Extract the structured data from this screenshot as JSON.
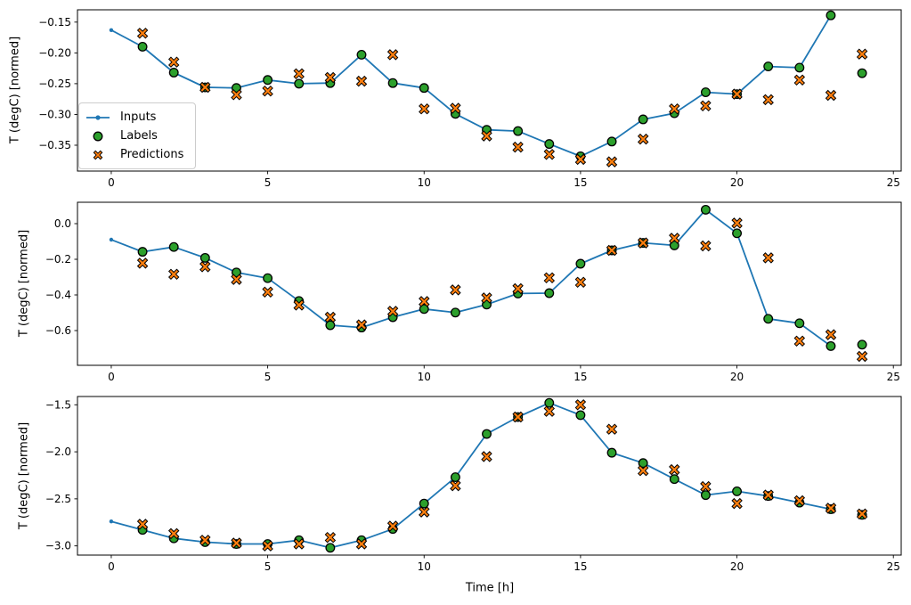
{
  "xlabel": "Time [h]",
  "colors": {
    "inputs": "#1f77b4",
    "labels": "#2ca02c",
    "predictions": "#ff7f0e",
    "marker_edge": "#000000",
    "axis": "#000000",
    "legend_border": "#cccccc"
  },
  "legend": {
    "position": "upper-left-of-first-subplot",
    "items": [
      {
        "label": "Inputs",
        "marker": "line-with-dot"
      },
      {
        "label": "Labels",
        "marker": "circle"
      },
      {
        "label": "Predictions",
        "marker": "thick-x"
      }
    ]
  },
  "chart_data": [
    {
      "type": "line",
      "title": "",
      "ylabel": "T (degC) [normed]",
      "grid": false,
      "xlim": [
        -1.08,
        25.25
      ],
      "ylim": [
        -0.392,
        -0.13
      ],
      "xticks": [
        0,
        5,
        10,
        15,
        20,
        25
      ],
      "xtick_labels": [
        "0",
        "5",
        "10",
        "15",
        "20",
        "25"
      ],
      "ytick_values": [
        -0.15,
        -0.2,
        -0.25,
        -0.3,
        -0.35
      ],
      "ytick_labels": [
        "−0.15",
        "−0.20",
        "−0.25",
        "−0.30",
        "−0.35"
      ],
      "series": [
        {
          "name": "Inputs",
          "style": "line-marker",
          "x": [
            0,
            1,
            2,
            3,
            4,
            5,
            6,
            7,
            8,
            9,
            10,
            11,
            12,
            13,
            14,
            15,
            16,
            17,
            18,
            19,
            20,
            21,
            22,
            23
          ],
          "y": [
            -0.163,
            -0.19,
            -0.232,
            -0.256,
            -0.257,
            -0.244,
            -0.25,
            -0.249,
            -0.203,
            -0.249,
            -0.257,
            -0.299,
            -0.325,
            -0.327,
            -0.348,
            -0.368,
            -0.344,
            -0.308,
            -0.298,
            -0.264,
            -0.267,
            -0.222,
            -0.224,
            -0.139
          ]
        },
        {
          "name": "Labels",
          "style": "scatter-circle",
          "x": [
            1,
            2,
            3,
            4,
            5,
            6,
            7,
            8,
            9,
            10,
            11,
            12,
            13,
            14,
            15,
            16,
            17,
            18,
            19,
            20,
            21,
            22,
            23,
            24
          ],
          "y": [
            -0.19,
            -0.232,
            -0.256,
            -0.257,
            -0.244,
            -0.25,
            -0.249,
            -0.203,
            -0.249,
            -0.257,
            -0.299,
            -0.325,
            -0.327,
            -0.348,
            -0.368,
            -0.344,
            -0.308,
            -0.298,
            -0.264,
            -0.267,
            -0.222,
            -0.224,
            -0.139,
            -0.233
          ]
        },
        {
          "name": "Predictions",
          "style": "scatter-x",
          "x": [
            1,
            2,
            3,
            4,
            5,
            6,
            7,
            8,
            9,
            10,
            11,
            12,
            13,
            14,
            15,
            16,
            17,
            18,
            19,
            20,
            21,
            22,
            23,
            24
          ],
          "y": [
            -0.168,
            -0.215,
            -0.256,
            -0.268,
            -0.262,
            -0.234,
            -0.24,
            -0.246,
            -0.203,
            -0.291,
            -0.29,
            -0.335,
            -0.353,
            -0.365,
            -0.373,
            -0.377,
            -0.34,
            -0.291,
            -0.286,
            -0.267,
            -0.276,
            -0.244,
            -0.269,
            -0.202
          ]
        }
      ]
    },
    {
      "type": "line",
      "title": "",
      "ylabel": "T (degC) [normed]",
      "grid": false,
      "xlim": [
        -1.08,
        25.25
      ],
      "ylim": [
        -0.795,
        0.12
      ],
      "xticks": [
        0,
        5,
        10,
        15,
        20,
        25
      ],
      "xtick_labels": [
        "0",
        "5",
        "10",
        "15",
        "20",
        "25"
      ],
      "ytick_values": [
        0.0,
        -0.2,
        -0.4,
        -0.6
      ],
      "ytick_labels": [
        "0.0",
        "−0.2",
        "−0.4",
        "−0.6"
      ],
      "series": [
        {
          "name": "Inputs",
          "style": "line-marker",
          "x": [
            0,
            1,
            2,
            3,
            4,
            5,
            6,
            7,
            8,
            9,
            10,
            11,
            12,
            13,
            14,
            15,
            16,
            17,
            18,
            19,
            20,
            21,
            22,
            23
          ],
          "y": [
            -0.09,
            -0.158,
            -0.131,
            -0.192,
            -0.274,
            -0.306,
            -0.434,
            -0.57,
            -0.583,
            -0.525,
            -0.479,
            -0.499,
            -0.454,
            -0.392,
            -0.39,
            -0.225,
            -0.15,
            -0.108,
            -0.122,
            0.078,
            -0.054,
            -0.534,
            -0.559,
            -0.687
          ]
        },
        {
          "name": "Labels",
          "style": "scatter-circle",
          "x": [
            1,
            2,
            3,
            4,
            5,
            6,
            7,
            8,
            9,
            10,
            11,
            12,
            13,
            14,
            15,
            16,
            17,
            18,
            19,
            20,
            21,
            22,
            23,
            24
          ],
          "y": [
            -0.158,
            -0.131,
            -0.192,
            -0.274,
            -0.306,
            -0.434,
            -0.57,
            -0.583,
            -0.525,
            -0.479,
            -0.499,
            -0.454,
            -0.392,
            -0.39,
            -0.225,
            -0.15,
            -0.108,
            -0.122,
            0.078,
            -0.054,
            -0.534,
            -0.559,
            -0.687,
            -0.679
          ]
        },
        {
          "name": "Predictions",
          "style": "scatter-x",
          "x": [
            1,
            2,
            3,
            4,
            5,
            6,
            7,
            8,
            9,
            10,
            11,
            12,
            13,
            14,
            15,
            16,
            17,
            18,
            19,
            20,
            21,
            22,
            23,
            24
          ],
          "y": [
            -0.222,
            -0.284,
            -0.242,
            -0.313,
            -0.384,
            -0.457,
            -0.525,
            -0.568,
            -0.492,
            -0.437,
            -0.372,
            -0.417,
            -0.365,
            -0.304,
            -0.329,
            -0.15,
            -0.108,
            -0.082,
            -0.125,
            0.003,
            -0.192,
            -0.659,
            -0.623,
            -0.745
          ]
        }
      ]
    },
    {
      "type": "line",
      "title": "",
      "ylabel": "T (degC) [normed]",
      "grid": false,
      "xlim": [
        -1.08,
        25.25
      ],
      "ylim": [
        -3.098,
        -1.412
      ],
      "xticks": [
        0,
        5,
        10,
        15,
        20,
        25
      ],
      "xtick_labels": [
        "0",
        "5",
        "10",
        "15",
        "20",
        "25"
      ],
      "ytick_values": [
        -1.5,
        -2.0,
        -2.5,
        -3.0
      ],
      "ytick_labels": [
        "−1.5",
        "−2.0",
        "−2.5",
        "−3.0"
      ],
      "series": [
        {
          "name": "Inputs",
          "style": "line-marker",
          "x": [
            0,
            1,
            2,
            3,
            4,
            5,
            6,
            7,
            8,
            9,
            10,
            11,
            12,
            13,
            14,
            15,
            16,
            17,
            18,
            19,
            20,
            21,
            22,
            23
          ],
          "y": [
            -2.74,
            -2.83,
            -2.92,
            -2.96,
            -2.98,
            -2.98,
            -2.94,
            -3.02,
            -2.94,
            -2.82,
            -2.55,
            -2.27,
            -1.81,
            -1.63,
            -1.48,
            -1.61,
            -2.01,
            -2.12,
            -2.29,
            -2.46,
            -2.42,
            -2.47,
            -2.54,
            -2.61
          ]
        },
        {
          "name": "Labels",
          "style": "scatter-circle",
          "x": [
            1,
            2,
            3,
            4,
            5,
            6,
            7,
            8,
            9,
            10,
            11,
            12,
            13,
            14,
            15,
            16,
            17,
            18,
            19,
            20,
            21,
            22,
            23,
            24
          ],
          "y": [
            -2.83,
            -2.92,
            -2.96,
            -2.98,
            -2.98,
            -2.94,
            -3.02,
            -2.94,
            -2.82,
            -2.55,
            -2.27,
            -1.81,
            -1.63,
            -1.48,
            -1.61,
            -2.01,
            -2.12,
            -2.29,
            -2.46,
            -2.42,
            -2.47,
            -2.54,
            -2.61,
            -2.67
          ]
        },
        {
          "name": "Predictions",
          "style": "scatter-x",
          "x": [
            1,
            2,
            3,
            4,
            5,
            6,
            7,
            8,
            9,
            10,
            11,
            12,
            13,
            14,
            15,
            16,
            17,
            18,
            19,
            20,
            21,
            22,
            23,
            24
          ],
          "y": [
            -2.77,
            -2.87,
            -2.94,
            -2.97,
            -3.0,
            -2.98,
            -2.91,
            -2.98,
            -2.79,
            -2.64,
            -2.36,
            -2.05,
            -1.63,
            -1.57,
            -1.5,
            -1.76,
            -2.2,
            -2.19,
            -2.37,
            -2.55,
            -2.46,
            -2.52,
            -2.6,
            -2.66
          ]
        }
      ]
    }
  ]
}
